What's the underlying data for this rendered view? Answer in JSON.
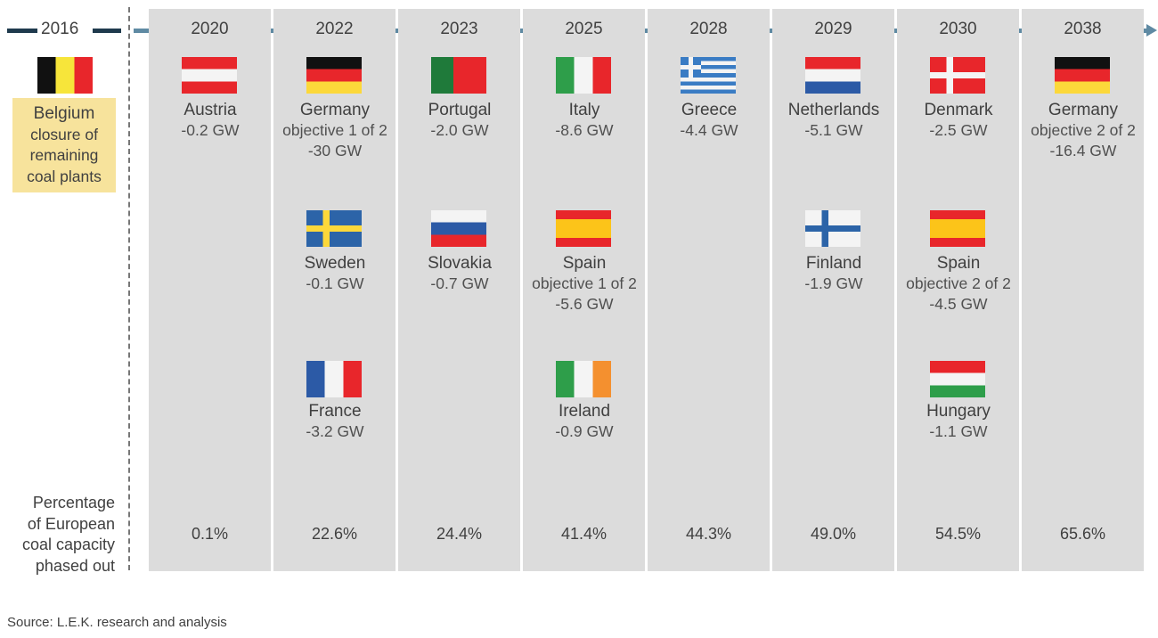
{
  "start": {
    "year": "2016",
    "country": "Belgium",
    "flag": "belgium-flag",
    "lines": [
      "closure of",
      "remaining",
      "coal plants"
    ],
    "highlight_color": "#f7e39c"
  },
  "row_label": [
    "Percentage",
    "of European",
    "coal capacity",
    "phased out"
  ],
  "source": "Source: L.E.K. research and analysis",
  "timeline_color": "#5f8aa3",
  "columns": [
    {
      "year": "2020",
      "pct": "0.1%",
      "entries": [
        {
          "slot": 0,
          "flag": "austria",
          "name": "Austria",
          "lines": [
            "-0.2 GW"
          ]
        }
      ]
    },
    {
      "year": "2022",
      "pct": "22.6%",
      "entries": [
        {
          "slot": 0,
          "flag": "germany",
          "name": "Germany",
          "lines": [
            "objective 1 of 2",
            "-30 GW"
          ]
        },
        {
          "slot": 1,
          "flag": "sweden",
          "name": "Sweden",
          "lines": [
            "-0.1 GW"
          ]
        },
        {
          "slot": 2,
          "flag": "france",
          "name": "France",
          "lines": [
            "-3.2 GW"
          ]
        }
      ]
    },
    {
      "year": "2023",
      "pct": "24.4%",
      "entries": [
        {
          "slot": 0,
          "flag": "portugal",
          "name": "Portugal",
          "lines": [
            "-2.0 GW"
          ]
        },
        {
          "slot": 1,
          "flag": "slovakia",
          "name": "Slovakia",
          "lines": [
            "-0.7 GW"
          ]
        }
      ]
    },
    {
      "year": "2025",
      "pct": "41.4%",
      "entries": [
        {
          "slot": 0,
          "flag": "italy",
          "name": "Italy",
          "lines": [
            "-8.6 GW"
          ]
        },
        {
          "slot": 1,
          "flag": "spain",
          "name": "Spain",
          "lines": [
            "objective 1 of 2",
            "-5.6 GW"
          ]
        },
        {
          "slot": 2,
          "flag": "ireland",
          "name": "Ireland",
          "lines": [
            "-0.9 GW"
          ]
        }
      ]
    },
    {
      "year": "2028",
      "pct": "44.3%",
      "entries": [
        {
          "slot": 0,
          "flag": "greece",
          "name": "Greece",
          "lines": [
            "-4.4 GW"
          ]
        }
      ]
    },
    {
      "year": "2029",
      "pct": "49.0%",
      "entries": [
        {
          "slot": 0,
          "flag": "netherlands",
          "name": "Netherlands",
          "lines": [
            "-5.1 GW"
          ]
        },
        {
          "slot": 1,
          "flag": "finland",
          "name": "Finland",
          "lines": [
            "-1.9 GW"
          ]
        }
      ]
    },
    {
      "year": "2030",
      "pct": "54.5%",
      "entries": [
        {
          "slot": 0,
          "flag": "denmark",
          "name": "Denmark",
          "lines": [
            "-2.5 GW"
          ]
        },
        {
          "slot": 1,
          "flag": "spain",
          "name": "Spain",
          "lines": [
            "objective 2 of 2",
            "-4.5 GW"
          ]
        },
        {
          "slot": 2,
          "flag": "hungary",
          "name": "Hungary",
          "lines": [
            "-1.1 GW"
          ]
        }
      ]
    },
    {
      "year": "2038",
      "pct": "65.6%",
      "entries": [
        {
          "slot": 0,
          "flag": "germany",
          "name": "Germany",
          "lines": [
            "objective 2 of 2",
            "-16.4 GW"
          ]
        }
      ]
    }
  ]
}
